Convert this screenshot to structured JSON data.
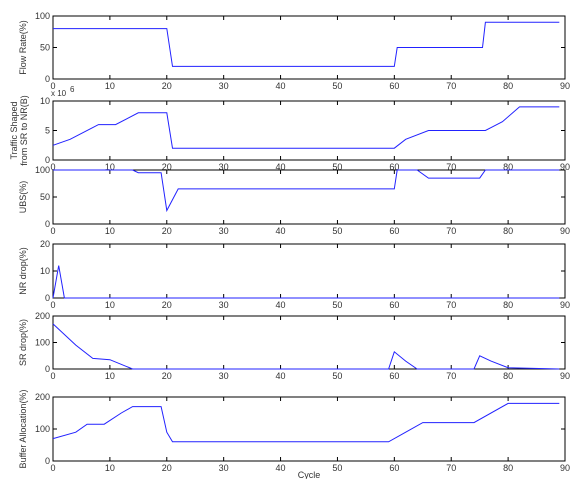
{
  "colors": {
    "line": "#2222ff",
    "axes": "#000000",
    "text": "#333333"
  },
  "chart_data": [
    {
      "type": "line",
      "ylabel": "Flow Rate(%)",
      "xlim": [
        0,
        90
      ],
      "ylim": [
        0,
        100
      ],
      "xticks": [
        "0",
        "10",
        "20",
        "30",
        "40",
        "50",
        "60",
        "70",
        "80",
        "90"
      ],
      "yticks": [
        "0",
        "50",
        "100"
      ],
      "grid": false,
      "series": [
        {
          "x": [
            0,
            20,
            21,
            60,
            60.5,
            75.5,
            76,
            89
          ],
          "y": [
            80,
            80,
            20,
            20,
            50,
            50,
            90,
            90
          ]
        }
      ]
    },
    {
      "type": "line",
      "ylabel": "Traffic Shaped from SR to NR(B)",
      "exponent_label": "x 10",
      "exponent_power": "6",
      "xlim": [
        0,
        90
      ],
      "ylim": [
        0,
        10
      ],
      "xticks": [
        "0",
        "10",
        "20",
        "30",
        "40",
        "50",
        "60",
        "70",
        "80",
        "90"
      ],
      "yticks": [
        "0",
        "5",
        "10"
      ],
      "grid": false,
      "series": [
        {
          "x": [
            0,
            3,
            8,
            11,
            15,
            20,
            21,
            60,
            62,
            66,
            70,
            76,
            79,
            82,
            89
          ],
          "y": [
            2.5,
            3.5,
            6,
            6,
            8,
            8,
            2,
            2,
            3.5,
            5,
            5,
            5,
            6.5,
            9,
            9
          ]
        }
      ]
    },
    {
      "type": "line",
      "ylabel": "UBS(%)",
      "xlim": [
        0,
        90
      ],
      "ylim": [
        0,
        100
      ],
      "xticks": [
        "0",
        "10",
        "20",
        "30",
        "40",
        "50",
        "60",
        "70",
        "80",
        "90"
      ],
      "yticks": [
        "0",
        "50",
        "100"
      ],
      "grid": false,
      "series": [
        {
          "x": [
            0,
            14,
            15,
            19,
            20,
            22,
            60,
            60.5,
            64,
            66,
            75,
            76,
            89
          ],
          "y": [
            100,
            100,
            95,
            95,
            25,
            65,
            65,
            100,
            100,
            85,
            85,
            100,
            100
          ]
        }
      ]
    },
    {
      "type": "line",
      "ylabel": "NR drop(%)",
      "xlim": [
        0,
        90
      ],
      "ylim": [
        0,
        20
      ],
      "xticks": [
        "0",
        "10",
        "20",
        "30",
        "40",
        "50",
        "60",
        "70",
        "80",
        "90"
      ],
      "yticks": [
        "0",
        "10",
        "20"
      ],
      "grid": false,
      "series": [
        {
          "x": [
            0,
            1,
            2,
            89
          ],
          "y": [
            0,
            12,
            0,
            0
          ]
        }
      ]
    },
    {
      "type": "line",
      "ylabel": "SR drop(%)",
      "xlim": [
        0,
        90
      ],
      "ylim": [
        0,
        200
      ],
      "xticks": [
        "0",
        "10",
        "20",
        "30",
        "40",
        "50",
        "60",
        "70",
        "80",
        "90"
      ],
      "yticks": [
        "0",
        "100",
        "200"
      ],
      "grid": false,
      "series": [
        {
          "x": [
            0,
            4,
            7,
            10,
            14,
            59,
            60,
            62,
            64,
            74,
            75,
            77,
            80,
            89
          ],
          "y": [
            170,
            90,
            40,
            35,
            0,
            0,
            65,
            30,
            0,
            0,
            50,
            30,
            5,
            0
          ]
        }
      ]
    },
    {
      "type": "line",
      "ylabel": "Buffer Allocation(%)",
      "xlabel": "Cycle",
      "xlim": [
        0,
        90
      ],
      "ylim": [
        0,
        200
      ],
      "xticks": [
        "0",
        "10",
        "20",
        "30",
        "40",
        "50",
        "60",
        "70",
        "80",
        "90"
      ],
      "yticks": [
        "0",
        "100",
        "200"
      ],
      "grid": false,
      "series": [
        {
          "x": [
            0,
            4,
            6,
            9,
            12,
            14,
            19,
            20,
            21,
            59,
            62,
            65,
            74,
            80,
            89
          ],
          "y": [
            70,
            90,
            115,
            115,
            150,
            170,
            170,
            90,
            60,
            60,
            90,
            120,
            120,
            180,
            180
          ]
        }
      ]
    }
  ]
}
